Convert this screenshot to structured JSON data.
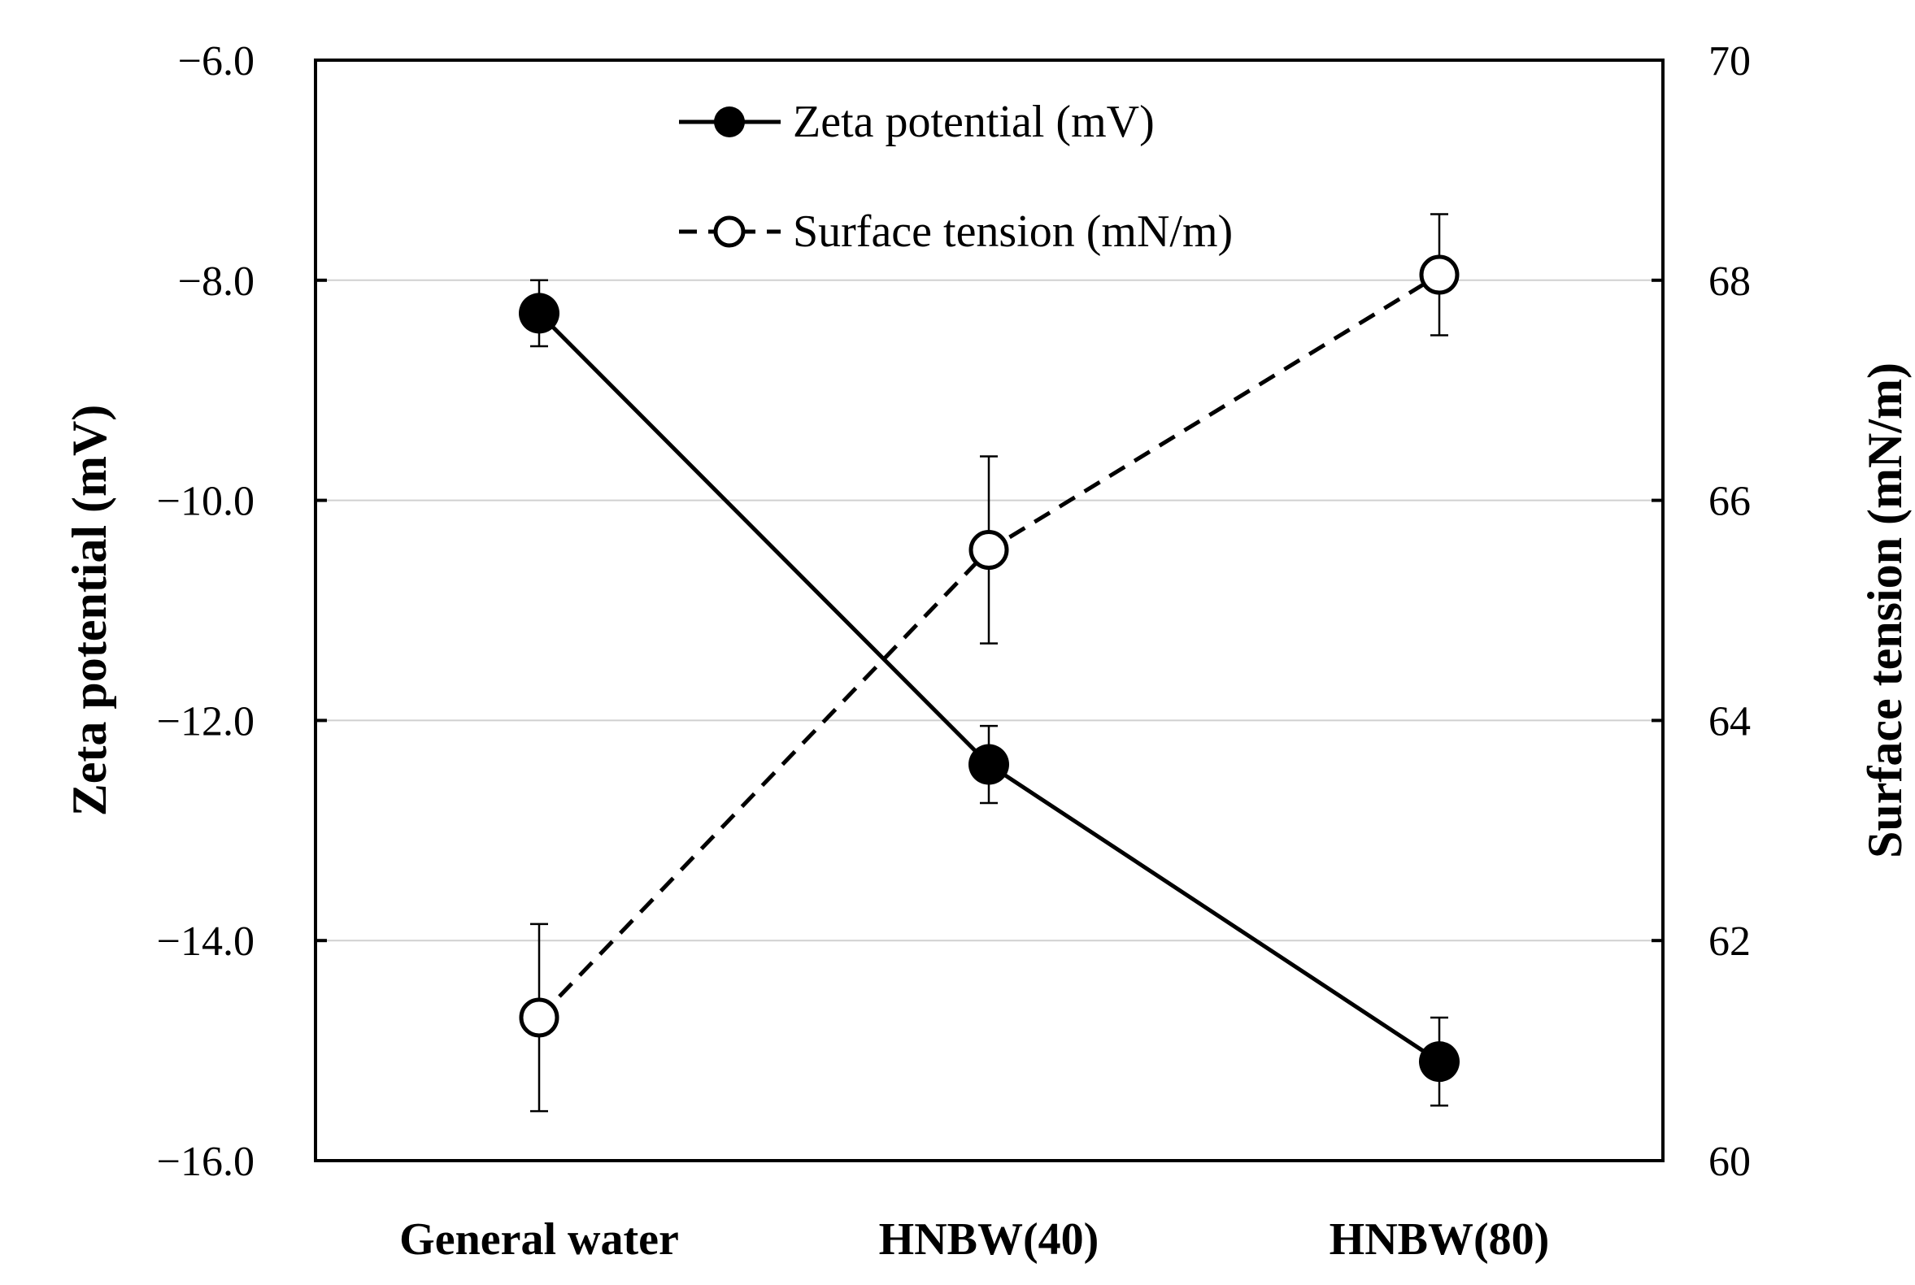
{
  "chart_data": {
    "type": "line",
    "categories": [
      "General water",
      "HNBW(40)",
      "HNBW(80)"
    ],
    "series": [
      {
        "name": "Zeta potential (mV)",
        "axis": "left",
        "marker": "filled-circle",
        "line": "solid",
        "values": [
          -8.3,
          -12.4,
          -15.1
        ],
        "error": [
          0.3,
          0.35,
          0.4
        ]
      },
      {
        "name": "Surface tension (mN/m)",
        "axis": "right",
        "marker": "open-circle",
        "line": "dashed",
        "values": [
          61.3,
          65.55,
          68.05
        ],
        "error": [
          0.85,
          0.85,
          0.55
        ]
      }
    ],
    "ylabel": "Zeta potential (mV)",
    "y2label": "Surface tension (mN/m)",
    "ylim": [
      -16.0,
      -6.0
    ],
    "y2lim": [
      60,
      70
    ],
    "yticks": [
      "−16.0",
      "−14.0",
      "−12.0",
      "−10.0",
      "−8.0",
      "−6.0"
    ],
    "y2ticks": [
      "60",
      "62",
      "64",
      "66",
      "68",
      "70"
    ],
    "grid": "horizontal",
    "legend": "top-center",
    "colors": {
      "line": "#000000",
      "grid": "#d0d0d0",
      "background": "#ffffff"
    }
  }
}
